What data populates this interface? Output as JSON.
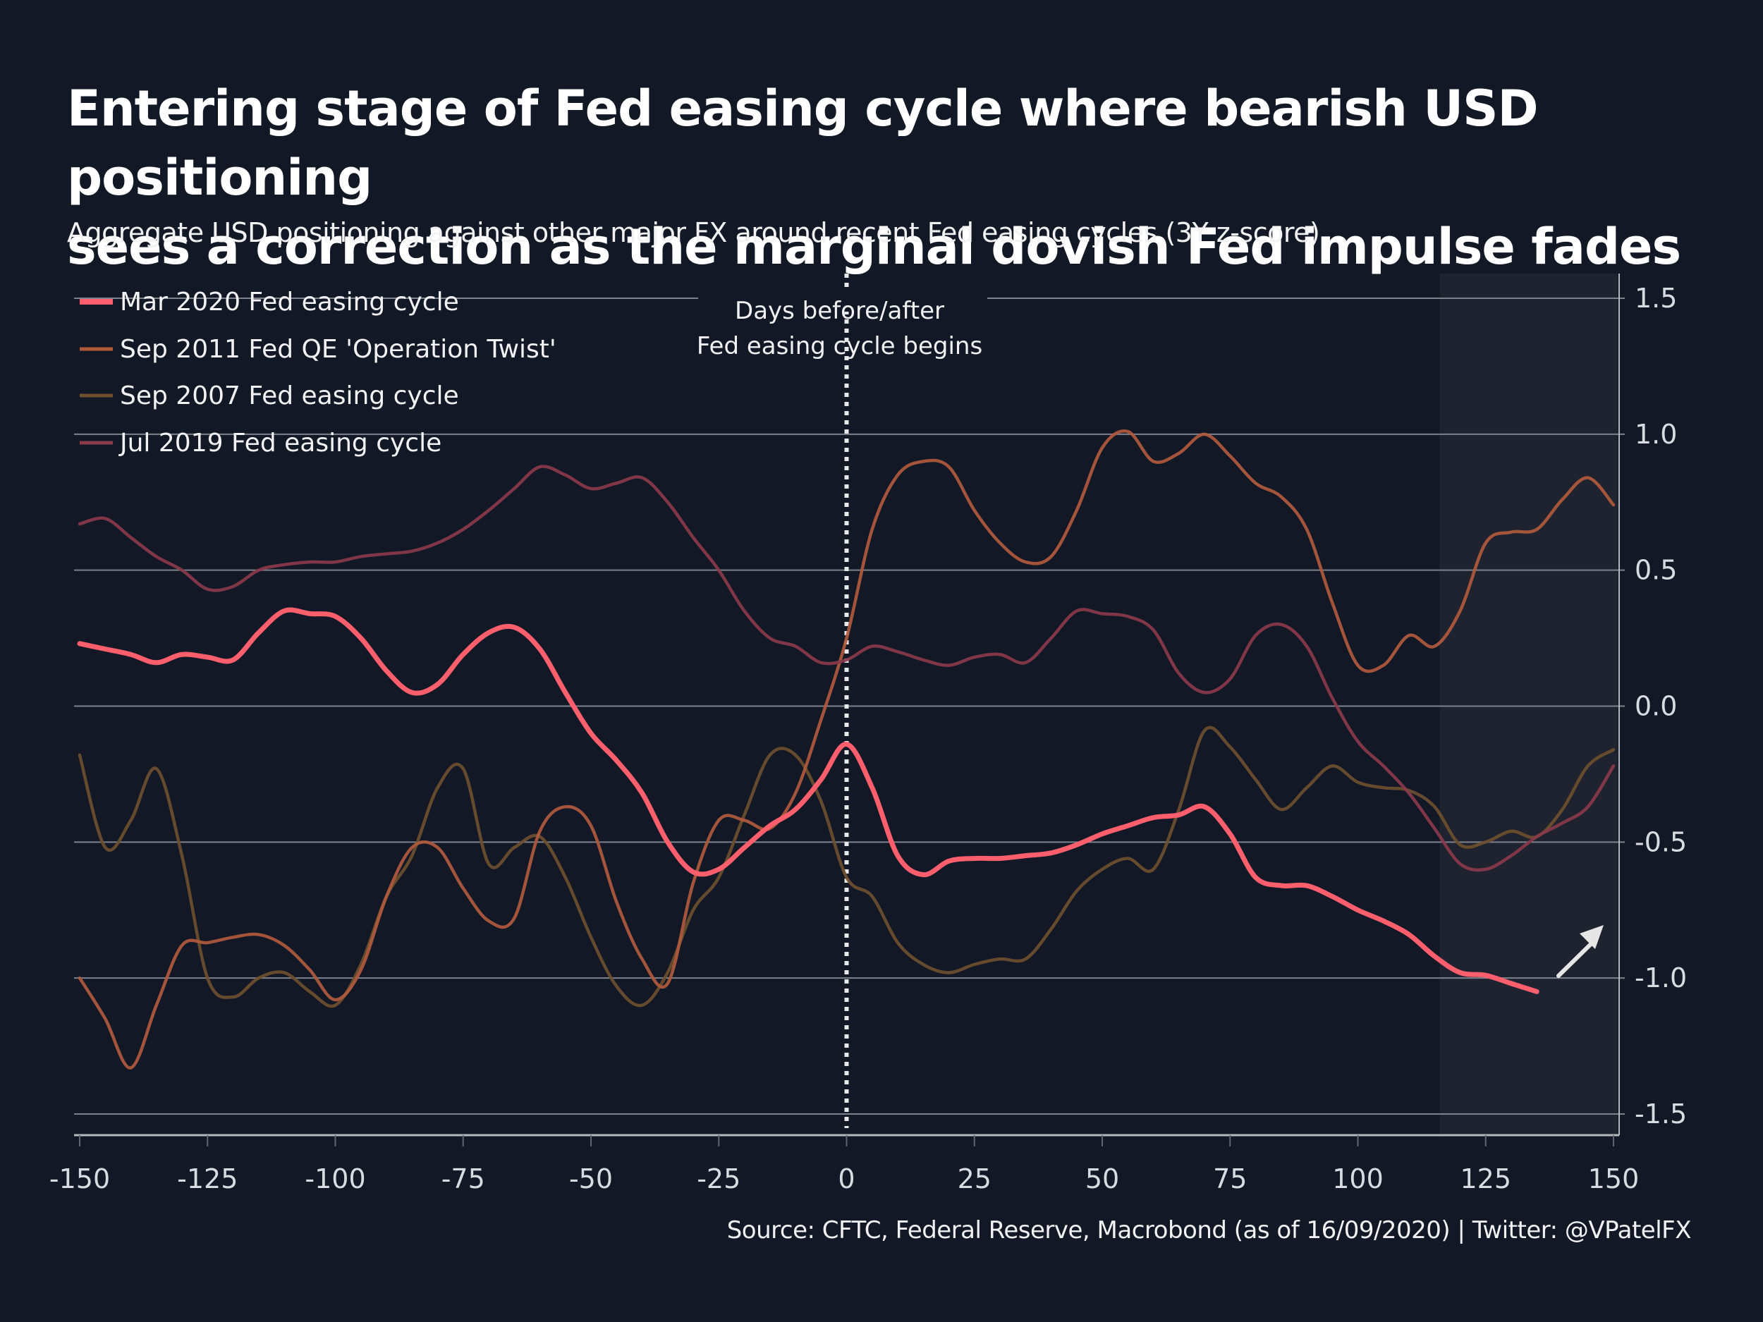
{
  "header": {
    "title_line1": "Entering stage of Fed easing cycle where bearish USD positioning",
    "title_line2": "sees a correction as the marginal dovish Fed impulse fades",
    "subtitle": "Aggregate USD positioning against other major FX around recent Fed easing cycles (3Y z-score)"
  },
  "footer": {
    "source": "Source: CFTC, Federal Reserve, Macrobond (as of 16/09/2020) | Twitter: @VPatelFX"
  },
  "chart_data": {
    "type": "line",
    "title": "Entering stage of Fed easing cycle where bearish USD positioning sees a correction as the marginal dovish Fed impulse fades",
    "subtitle": "Aggregate USD positioning against other major FX around recent Fed easing cycles (3Y z-score)",
    "xlabel": "",
    "ylabel": "",
    "xlim": [
      -150,
      150
    ],
    "ylim": [
      -1.6,
      1.6
    ],
    "x_ticks": [
      "-150",
      "-125",
      "-100",
      "-75",
      "-50",
      "-25",
      "0",
      "25",
      "50",
      "75",
      "100",
      "125",
      "150"
    ],
    "y_ticks": [
      "1.5",
      "1.0",
      "0.5",
      "0.0",
      "-0.5",
      "-1.0",
      "-1.5"
    ],
    "y_axis_side": "right",
    "grid": true,
    "legend_placement": "top-left",
    "annotations": [
      {
        "type": "vertical-line",
        "x": 0,
        "style": "dotted",
        "label": "Days before/after Fed easing cycle begins"
      },
      {
        "type": "shaded-region",
        "x_start": 116,
        "x_end": 150
      },
      {
        "type": "arrow",
        "direction": "up-right",
        "near_x": 140,
        "near_y": -0.9
      }
    ],
    "series": [
      {
        "name": "Mar 2020 Fed easing cycle",
        "color": "#ff5f6d",
        "emphasis": true,
        "x": [
          -150,
          -145,
          -140,
          -135,
          -130,
          -125,
          -120,
          -115,
          -110,
          -105,
          -100,
          -95,
          -90,
          -85,
          -80,
          -75,
          -70,
          -65,
          -60,
          -55,
          -50,
          -45,
          -40,
          -35,
          -30,
          -25,
          -20,
          -15,
          -10,
          -5,
          0,
          5,
          10,
          15,
          20,
          25,
          30,
          35,
          40,
          45,
          50,
          55,
          60,
          65,
          70,
          75,
          80,
          85,
          90,
          95,
          100,
          105,
          110,
          115,
          120,
          125,
          130,
          135
        ],
        "y": [
          0.23,
          0.21,
          0.19,
          0.16,
          0.19,
          0.18,
          0.17,
          0.27,
          0.35,
          0.34,
          0.33,
          0.25,
          0.13,
          0.05,
          0.08,
          0.19,
          0.27,
          0.29,
          0.21,
          0.05,
          -0.1,
          -0.2,
          -0.32,
          -0.5,
          -0.61,
          -0.6,
          -0.52,
          -0.44,
          -0.38,
          -0.27,
          -0.14,
          -0.3,
          -0.55,
          -0.62,
          -0.57,
          -0.56,
          -0.56,
          -0.55,
          -0.54,
          -0.51,
          -0.47,
          -0.44,
          -0.41,
          -0.4,
          -0.37,
          -0.47,
          -0.63,
          -0.66,
          -0.66,
          -0.7,
          -0.75,
          -0.79,
          -0.84,
          -0.92,
          -0.98,
          -0.99,
          -1.02,
          -1.05
        ]
      },
      {
        "name": "Sep 2011 Fed QE 'Operation Twist'",
        "color": "#b05a3c",
        "emphasis": false,
        "x": [
          -150,
          -145,
          -140,
          -135,
          -130,
          -125,
          -120,
          -115,
          -110,
          -105,
          -100,
          -95,
          -90,
          -85,
          -80,
          -75,
          -70,
          -65,
          -60,
          -55,
          -50,
          -45,
          -40,
          -35,
          -30,
          -25,
          -20,
          -15,
          -10,
          -5,
          0,
          5,
          10,
          15,
          20,
          25,
          30,
          35,
          40,
          45,
          50,
          55,
          60,
          65,
          70,
          75,
          80,
          85,
          90,
          95,
          100,
          105,
          110,
          115,
          120,
          125,
          130,
          135,
          140,
          145,
          150
        ],
        "y": [
          -1.0,
          -1.15,
          -1.33,
          -1.1,
          -0.88,
          -0.87,
          -0.85,
          -0.84,
          -0.88,
          -0.97,
          -1.08,
          -0.97,
          -0.7,
          -0.52,
          -0.52,
          -0.67,
          -0.79,
          -0.78,
          -0.46,
          -0.37,
          -0.44,
          -0.72,
          -0.93,
          -1.02,
          -0.65,
          -0.42,
          -0.42,
          -0.45,
          -0.32,
          -0.05,
          0.25,
          0.65,
          0.85,
          0.9,
          0.88,
          0.72,
          0.6,
          0.53,
          0.55,
          0.72,
          0.95,
          1.01,
          0.9,
          0.93,
          1.0,
          0.92,
          0.82,
          0.77,
          0.65,
          0.38,
          0.15,
          0.15,
          0.26,
          0.22,
          0.35,
          0.6,
          0.64,
          0.65,
          0.76,
          0.84,
          0.74
        ]
      },
      {
        "name": "Sep 2007 Fed easing cycle",
        "color": "#6e4f2e",
        "emphasis": false,
        "x": [
          -150,
          -145,
          -140,
          -135,
          -130,
          -125,
          -120,
          -115,
          -110,
          -105,
          -100,
          -95,
          -90,
          -85,
          -80,
          -75,
          -70,
          -65,
          -60,
          -55,
          -50,
          -45,
          -40,
          -35,
          -30,
          -25,
          -20,
          -15,
          -10,
          -5,
          0,
          5,
          10,
          15,
          20,
          25,
          30,
          35,
          40,
          45,
          50,
          55,
          60,
          65,
          70,
          75,
          80,
          85,
          90,
          95,
          100,
          105,
          110,
          115,
          120,
          125,
          130,
          135,
          140,
          145,
          150
        ],
        "y": [
          -0.18,
          -0.52,
          -0.42,
          -0.23,
          -0.55,
          -1.0,
          -1.07,
          -1.0,
          -0.98,
          -1.05,
          -1.1,
          -0.95,
          -0.7,
          -0.55,
          -0.3,
          -0.23,
          -0.58,
          -0.52,
          -0.48,
          -0.63,
          -0.85,
          -1.03,
          -1.1,
          -0.98,
          -0.75,
          -0.63,
          -0.4,
          -0.18,
          -0.18,
          -0.35,
          -0.63,
          -0.7,
          -0.87,
          -0.95,
          -0.98,
          -0.95,
          -0.93,
          -0.93,
          -0.82,
          -0.68,
          -0.6,
          -0.56,
          -0.6,
          -0.38,
          -0.09,
          -0.15,
          -0.27,
          -0.38,
          -0.3,
          -0.22,
          -0.28,
          -0.3,
          -0.31,
          -0.37,
          -0.51,
          -0.5,
          -0.46,
          -0.48,
          -0.38,
          -0.22,
          -0.16
        ]
      },
      {
        "name": "Jul 2019 Fed easing cycle",
        "color": "#8a3a4a",
        "emphasis": false,
        "x": [
          -150,
          -145,
          -140,
          -135,
          -130,
          -125,
          -120,
          -115,
          -110,
          -105,
          -100,
          -95,
          -90,
          -85,
          -80,
          -75,
          -70,
          -65,
          -60,
          -55,
          -50,
          -45,
          -40,
          -35,
          -30,
          -25,
          -20,
          -15,
          -10,
          -5,
          0,
          5,
          10,
          15,
          20,
          25,
          30,
          35,
          40,
          45,
          50,
          55,
          60,
          65,
          70,
          75,
          80,
          85,
          90,
          95,
          100,
          105,
          110,
          115,
          120,
          125,
          130,
          135,
          140,
          145,
          150
        ],
        "y": [
          0.67,
          0.69,
          0.62,
          0.55,
          0.5,
          0.43,
          0.44,
          0.5,
          0.52,
          0.53,
          0.53,
          0.55,
          0.56,
          0.57,
          0.6,
          0.65,
          0.72,
          0.8,
          0.88,
          0.85,
          0.8,
          0.82,
          0.84,
          0.75,
          0.62,
          0.5,
          0.35,
          0.25,
          0.22,
          0.16,
          0.17,
          0.22,
          0.2,
          0.17,
          0.15,
          0.18,
          0.19,
          0.16,
          0.25,
          0.35,
          0.34,
          0.33,
          0.28,
          0.12,
          0.05,
          0.1,
          0.26,
          0.3,
          0.22,
          0.03,
          -0.13,
          -0.22,
          -0.32,
          -0.45,
          -0.58,
          -0.6,
          -0.55,
          -0.48,
          -0.43,
          -0.37,
          -0.22
        ]
      }
    ]
  }
}
